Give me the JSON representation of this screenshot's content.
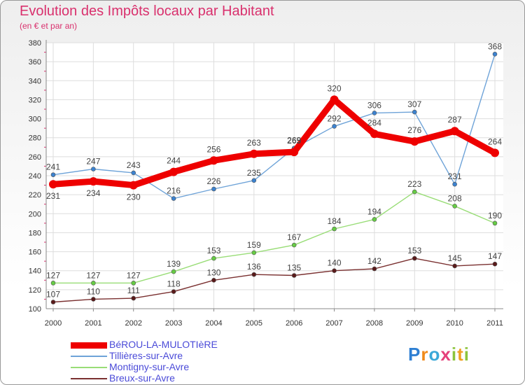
{
  "colors": {
    "title": "#d9306d",
    "grid": "#dddddd",
    "legend_text": "#4a4ad8"
  },
  "logo": {
    "parts": [
      "P",
      "r",
      "o",
      "x",
      "i",
      "t",
      "i"
    ]
  },
  "chart_data": {
    "type": "line",
    "title": "Evolution des Impôts locaux par Habitant",
    "subtitle": "(en € et par an)",
    "xlabel": "",
    "ylabel": "",
    "ylim": [
      100,
      380
    ],
    "yticks": [
      100,
      120,
      140,
      160,
      180,
      200,
      220,
      240,
      260,
      280,
      300,
      320,
      340,
      360,
      380
    ],
    "categories": [
      "2000",
      "2001",
      "2002",
      "2003",
      "2004",
      "2005",
      "2006",
      "2007",
      "2008",
      "2009",
      "2010",
      "2011"
    ],
    "grid": true,
    "legend_position": "bottom-left",
    "series": [
      {
        "name": "BéROU-LA-MULOTIèRE",
        "values": [
          231,
          234,
          230,
          244,
          256,
          263,
          265,
          320,
          284,
          276,
          287,
          264
        ],
        "color": "#ee0000",
        "marker": "#ee0000",
        "width": 9,
        "label_above": [
          false,
          false,
          false,
          true,
          true,
          true,
          true,
          true,
          true,
          true,
          true,
          true
        ]
      },
      {
        "name": "Tillières-sur-Avre",
        "values": [
          241,
          247,
          243,
          216,
          226,
          235,
          269,
          292,
          306,
          307,
          231,
          368
        ],
        "color": "#6ea3d8",
        "marker": "#3b82d0",
        "width": 1.4,
        "label_above": [
          true,
          true,
          true,
          true,
          true,
          true,
          true,
          true,
          true,
          true,
          true,
          true
        ]
      },
      {
        "name": "Montigny-sur-Avre",
        "values": [
          127,
          127,
          127,
          139,
          153,
          159,
          167,
          184,
          194,
          223,
          208,
          190
        ],
        "color": "#99dd77",
        "marker": "#66cc44",
        "width": 1.4,
        "label_above": [
          true,
          true,
          true,
          true,
          true,
          true,
          true,
          true,
          true,
          true,
          true,
          true
        ]
      },
      {
        "name": "Breux-sur-Avre",
        "values": [
          107,
          110,
          111,
          118,
          130,
          136,
          135,
          140,
          142,
          153,
          145,
          147
        ],
        "color": "#7a3030",
        "marker": "#5a1a1a",
        "width": 1.4,
        "label_above": [
          true,
          true,
          true,
          true,
          true,
          true,
          true,
          true,
          true,
          true,
          true,
          true
        ]
      }
    ]
  }
}
